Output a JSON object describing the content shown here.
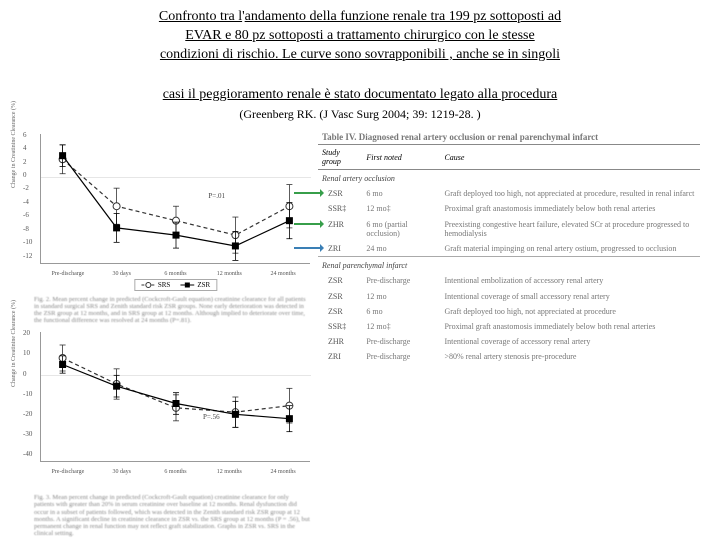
{
  "title": {
    "line1_a": "Confronto tra l",
    "line1_ap": "'",
    "line1_b": "andamento della funzione renale tra 199 pz sottoposti ad",
    "line2": "EVAR e 80 pz sottoposti a trattamento chirurgico con le stesse",
    "line3_a": "condizioni di rischio",
    "line3_b": ". Le curve sono sovrapponibili , anche se in singoli"
  },
  "subtitle": "casi il peggioramento renale è stato documentato legato alla  procedura",
  "citation": {
    "author": "(Greenberg RK. ",
    "rest": "(J Vasc Surg 2004; 39: 1219-28. )"
  },
  "chart1": {
    "type": "line",
    "ylim": [
      -12,
      6
    ],
    "yticks": [
      6,
      4,
      2,
      0,
      -2,
      -4,
      -6,
      -8,
      -10,
      -12
    ],
    "xlabels": [
      "Pre-discharge",
      "30 days",
      "6 months",
      "12 months",
      "24 months"
    ],
    "ylabel": "Change in Creatinine Clearance (%)",
    "series": {
      "SRS": {
        "marker": "circle",
        "fill": "#ffffff",
        "stroke": "#333333",
        "dash": "4 3",
        "points": [
          [
            0.08,
            2.5
          ],
          [
            0.28,
            -4
          ],
          [
            0.5,
            -6
          ],
          [
            0.72,
            -8
          ],
          [
            0.92,
            -4
          ]
        ],
        "err": [
          2,
          2.5,
          2,
          2.5,
          3
        ]
      },
      "ZSR": {
        "marker": "square",
        "fill": "#000000",
        "stroke": "#000000",
        "dash": "",
        "points": [
          [
            0.08,
            3
          ],
          [
            0.28,
            -7
          ],
          [
            0.5,
            -8
          ],
          [
            0.72,
            -9.5
          ],
          [
            0.92,
            -6
          ]
        ],
        "err": [
          1.5,
          2,
          1.8,
          2,
          2.5
        ]
      }
    },
    "sig_label": "P=.01",
    "sig_pos": [
      0.62,
      0.45
    ],
    "caption": "Fig. 2. Mean percent change in predicted (Cockcroft-Gault equation) creatinine clearance for all patients in standard surgical SRS and Zenith standard risk ZSR groups. None early deterioration was detected in the ZSR group at 12 months, and in SRS group at 12 months. Although implied to deteriorate over time, the functional difference was resolved at 24 months (P=.81)."
  },
  "chart2": {
    "type": "line",
    "ylim": [
      -40,
      20
    ],
    "yticks": [
      20,
      10,
      0,
      -10,
      -20,
      -30,
      -40
    ],
    "xlabels": [
      "Pre-discharge",
      "30 days",
      "6 months",
      "12 months",
      "24 months"
    ],
    "ylabel": "Change in Creatinine Clearance (%)",
    "series": {
      "SRS": {
        "marker": "circle",
        "fill": "#ffffff",
        "stroke": "#333333",
        "dash": "4 3",
        "points": [
          [
            0.08,
            8
          ],
          [
            0.28,
            -4
          ],
          [
            0.5,
            -15
          ],
          [
            0.72,
            -17
          ],
          [
            0.92,
            -14
          ]
        ],
        "err": [
          6,
          7,
          6,
          7,
          8
        ]
      },
      "ZSR": {
        "marker": "square",
        "fill": "#000000",
        "stroke": "#000000",
        "dash": "",
        "points": [
          [
            0.08,
            5
          ],
          [
            0.28,
            -5
          ],
          [
            0.5,
            -13
          ],
          [
            0.72,
            -18
          ],
          [
            0.92,
            -20
          ]
        ],
        "err": [
          4,
          5,
          5,
          6,
          6
        ]
      }
    },
    "sig_label": "P=.56",
    "sig_pos": [
      0.6,
      0.62
    ],
    "caption": "Fig. 3. Mean percent change in predicted (Cockcroft-Gault equation) creatinine clearance for only patients with greater than 20% in serum creatinine over baseline at 12 months. Renal dysfunction did occur in a subset of patients followed, which was detected in the Zenith standard risk ZSR group at 12 months. A significant decline in creatinine clearance in ZSR vs. the SRS group at 12 months (P = .56), but permanent change in renal function may not reflect graft stabilization. Graphs in ZSR vs. SRS in the clinical setting."
  },
  "table": {
    "title": "Table IV. Diagnosed renal artery occlusion or renal parenchymal infarct",
    "headers": [
      "Study group",
      "First noted",
      "Cause"
    ],
    "section1": "Renal artery occlusion",
    "rows1": [
      {
        "g": "ZSR",
        "n": "6 mo",
        "c": "Graft deployed too high, not appreciated at procedure, resulted in renal infarct",
        "arrow": "#379e4a"
      },
      {
        "g": "SSR‡",
        "n": "12 mo‡",
        "c": "Proximal graft anastomosis immediately below both renal arteries"
      },
      {
        "g": "ZHR",
        "n": "6 mo (partial occlusion)",
        "c": "Preexisting congestive heart failure, elevated SCr at procedure progressed to hemodialysis",
        "arrow": "#379e4a"
      },
      {
        "g": "ZRI",
        "n": "24 mo",
        "c": "Graft material impinging on renal artery ostium, progressed to occlusion",
        "arrow": "#3a7fb5"
      }
    ],
    "section2": "Renal parenchymal infarct",
    "rows2": [
      {
        "g": "ZSR",
        "n": "Pre-discharge",
        "c": "Intentional embolization of accessory renal artery"
      },
      {
        "g": "ZSR",
        "n": "12 mo",
        "c": "Intentional coverage of small accessory renal artery"
      },
      {
        "g": "ZSR",
        "n": "6 mo",
        "c": "Graft deployed too high, not appreciated at procedure"
      },
      {
        "g": "SSR‡",
        "n": "12 mo‡",
        "c": "Proximal graft anastomosis immediately below both renal arteries"
      },
      {
        "g": "ZHR",
        "n": "Pre-discharge",
        "c": "Intentional coverage of accessory renal artery"
      },
      {
        "g": "ZRI",
        "n": "Pre-discharge",
        "c": ">80% renal artery stenosis pre-procedure"
      }
    ]
  },
  "colors": {
    "bg": "#ffffff",
    "text": "#000000",
    "axis": "#888888",
    "blur_text": "#888888"
  }
}
